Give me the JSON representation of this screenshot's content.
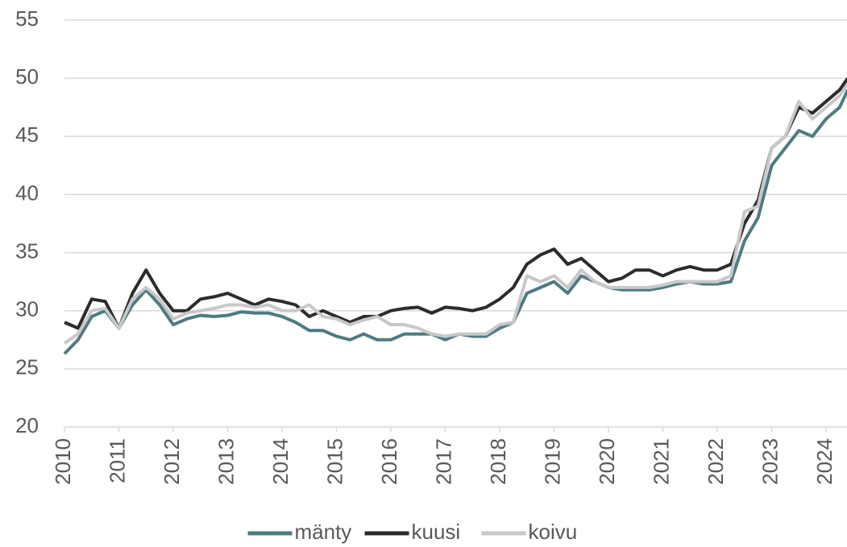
{
  "chart_data": {
    "type": "line",
    "x": [
      2010,
      2010.25,
      2010.5,
      2010.75,
      2011,
      2011.25,
      2011.5,
      2011.75,
      2012,
      2012.25,
      2012.5,
      2012.75,
      2013,
      2013.25,
      2013.5,
      2013.75,
      2014,
      2014.25,
      2014.5,
      2014.75,
      2015,
      2015.25,
      2015.5,
      2015.75,
      2016,
      2016.25,
      2016.5,
      2016.75,
      2017,
      2017.25,
      2017.5,
      2017.75,
      2018,
      2018.25,
      2018.5,
      2018.75,
      2019,
      2019.25,
      2019.5,
      2019.75,
      2020,
      2020.25,
      2020.5,
      2020.75,
      2021,
      2021.25,
      2021.5,
      2021.75,
      2022,
      2022.25,
      2022.5,
      2022.75,
      2023,
      2023.25,
      2023.5,
      2023.75,
      2024,
      2024.25,
      2024.4
    ],
    "series": [
      {
        "name": "mänty",
        "color": "#4e7b82",
        "values": [
          26.3,
          27.5,
          29.5,
          30.0,
          28.5,
          30.5,
          31.8,
          30.5,
          28.8,
          29.3,
          29.6,
          29.5,
          29.6,
          29.9,
          29.8,
          29.8,
          29.5,
          29.0,
          28.3,
          28.3,
          27.8,
          27.5,
          28.0,
          27.5,
          27.5,
          28.0,
          28.0,
          28.0,
          27.5,
          28.0,
          27.8,
          27.8,
          28.5,
          29.0,
          31.5,
          32.0,
          32.5,
          31.5,
          33.0,
          32.5,
          32.0,
          31.8,
          31.8,
          31.8,
          32.0,
          32.3,
          32.5,
          32.3,
          32.3,
          32.5,
          36.0,
          38.0,
          42.5,
          44.0,
          45.5,
          45.0,
          46.5,
          47.5,
          49.0
        ]
      },
      {
        "name": "kuusi",
        "color": "#2b2b2b",
        "values": [
          29.0,
          28.5,
          31.0,
          30.8,
          28.5,
          31.5,
          33.5,
          31.5,
          30.0,
          30.0,
          31.0,
          31.2,
          31.5,
          31.0,
          30.5,
          31.0,
          30.8,
          30.5,
          29.5,
          30.0,
          29.5,
          29.0,
          29.5,
          29.5,
          30.0,
          30.2,
          30.3,
          29.8,
          30.3,
          30.2,
          30.0,
          30.3,
          31.0,
          32.0,
          34.0,
          34.8,
          35.3,
          34.0,
          34.5,
          33.5,
          32.5,
          32.8,
          33.5,
          33.5,
          33.0,
          33.5,
          33.8,
          33.5,
          33.5,
          34.0,
          37.5,
          39.5,
          44.0,
          45.0,
          47.5,
          47.0,
          48.0,
          49.0,
          50.0
        ]
      },
      {
        "name": "koivu",
        "color": "#c8c8c8",
        "values": [
          27.2,
          28.0,
          30.0,
          30.2,
          28.5,
          31.0,
          32.0,
          31.0,
          29.3,
          29.8,
          30.0,
          30.2,
          30.5,
          30.5,
          30.3,
          30.5,
          30.0,
          30.0,
          30.5,
          29.5,
          29.3,
          28.8,
          29.2,
          29.5,
          28.8,
          28.8,
          28.5,
          28.0,
          27.8,
          28.0,
          28.0,
          28.0,
          28.8,
          29.0,
          33.0,
          32.5,
          33.0,
          32.0,
          33.5,
          32.5,
          32.0,
          32.0,
          32.0,
          32.0,
          32.2,
          32.5,
          32.5,
          32.5,
          32.5,
          33.0,
          38.5,
          39.0,
          44.0,
          45.0,
          48.0,
          46.5,
          47.5,
          48.5,
          49.5
        ]
      }
    ],
    "xlim": [
      2010,
      2024.4
    ],
    "xticks": [
      2010,
      2011,
      2012,
      2013,
      2014,
      2015,
      2016,
      2017,
      2018,
      2019,
      2020,
      2021,
      2022,
      2023,
      2024
    ],
    "ylim": [
      20,
      55
    ],
    "yticks": [
      20,
      25,
      30,
      35,
      40,
      45,
      50,
      55
    ],
    "grid": true,
    "legend": "bottom"
  }
}
